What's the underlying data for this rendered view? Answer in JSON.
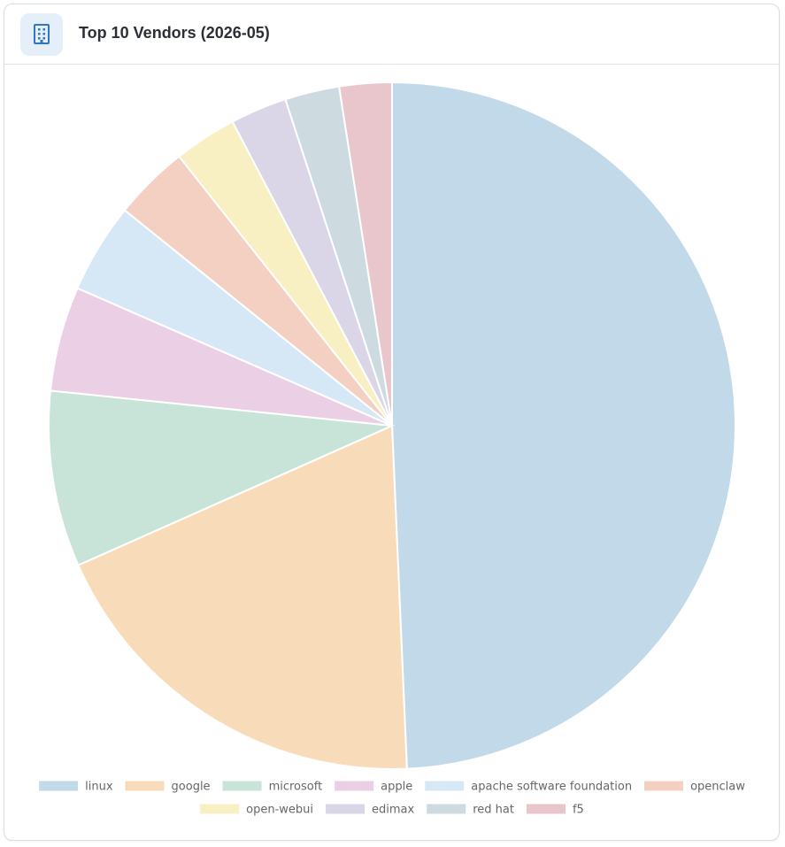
{
  "card": {
    "title": "Top 10 Vendors (2026-05)",
    "icon": "building-icon"
  },
  "chart_data": {
    "type": "pie",
    "title": "Top 10 Vendors (2026-05)",
    "legend_position": "bottom",
    "categories": [
      "linux",
      "google",
      "microsoft",
      "apple",
      "apache software foundation",
      "openclaw",
      "open-webui",
      "edimax",
      "red hat",
      "f5"
    ],
    "values": [
      50,
      19.3,
      8.4,
      5.0,
      4.3,
      3.6,
      3.0,
      2.7,
      2.6,
      2.5
    ],
    "colors": [
      "#c2d9e9",
      "#f8dcba",
      "#c8e4d9",
      "#ebcfe4",
      "#d6e8f5",
      "#f3d0c2",
      "#f8efc2",
      "#dad6e7",
      "#cddbe1",
      "#e8c6cc"
    ]
  }
}
